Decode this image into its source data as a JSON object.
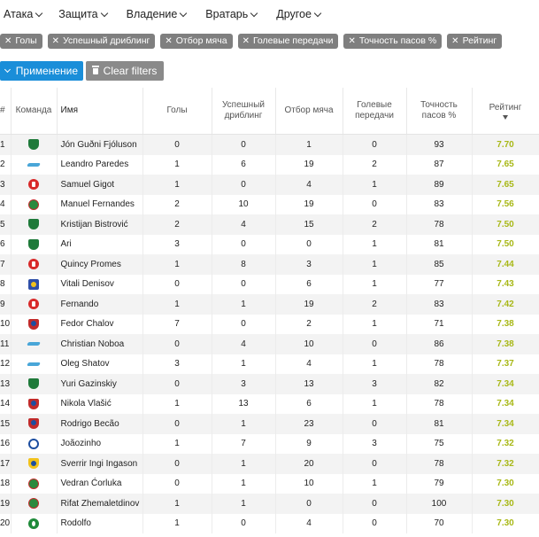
{
  "menu": {
    "items": [
      {
        "label": "Атака"
      },
      {
        "label": "Защита"
      },
      {
        "label": "Владение"
      },
      {
        "label": "Вратарь"
      },
      {
        "label": "Другое"
      }
    ]
  },
  "filters": [
    {
      "label": "Голы"
    },
    {
      "label": "Успешный дриблинг"
    },
    {
      "label": "Отбор мяча"
    },
    {
      "label": "Голевые передачи"
    },
    {
      "label": "Точность пасов %"
    },
    {
      "label": "Рейтинг"
    }
  ],
  "actions": {
    "apply_label": "Применение",
    "clear_label": "Clear filters"
  },
  "table": {
    "headers": {
      "num": "#",
      "team": "Команда",
      "name": "Имя",
      "goals": "Голы",
      "dribbling": "Успешный дриблинг",
      "tackles": "Отбор мяча",
      "assists": "Голевые передачи",
      "pass_accuracy": "Точность пасов %",
      "rating": "Рейтинг"
    },
    "rows": [
      {
        "num": "1",
        "team": "krasnodar",
        "name": "Jón Guðni Fjóluson",
        "goals": "0",
        "dribbling": "0",
        "tackles": "1",
        "assists": "0",
        "pass": "93",
        "rating": "7.70"
      },
      {
        "num": "2",
        "team": "zenit",
        "name": "Leandro Paredes",
        "goals": "1",
        "dribbling": "6",
        "tackles": "19",
        "assists": "2",
        "pass": "87",
        "rating": "7.65"
      },
      {
        "num": "3",
        "team": "spartak",
        "name": "Samuel Gigot",
        "goals": "1",
        "dribbling": "0",
        "tackles": "4",
        "assists": "1",
        "pass": "89",
        "rating": "7.65"
      },
      {
        "num": "4",
        "team": "lokomotiv",
        "name": "Manuel Fernandes",
        "goals": "2",
        "dribbling": "10",
        "tackles": "19",
        "assists": "0",
        "pass": "83",
        "rating": "7.56"
      },
      {
        "num": "5",
        "team": "krasnodar",
        "name": "Kristijan Bistrović",
        "goals": "2",
        "dribbling": "4",
        "tackles": "15",
        "assists": "2",
        "pass": "78",
        "rating": "7.50"
      },
      {
        "num": "6",
        "team": "krasnodar",
        "name": "Ari",
        "goals": "3",
        "dribbling": "0",
        "tackles": "0",
        "assists": "1",
        "pass": "81",
        "rating": "7.50"
      },
      {
        "num": "7",
        "team": "spartak",
        "name": "Quincy Promes",
        "goals": "1",
        "dribbling": "8",
        "tackles": "3",
        "assists": "1",
        "pass": "85",
        "rating": "7.44"
      },
      {
        "num": "8",
        "team": "krylia",
        "name": "Vitali Denisov",
        "goals": "0",
        "dribbling": "0",
        "tackles": "6",
        "assists": "1",
        "pass": "77",
        "rating": "7.43"
      },
      {
        "num": "9",
        "team": "spartak",
        "name": "Fernando",
        "goals": "1",
        "dribbling": "1",
        "tackles": "19",
        "assists": "2",
        "pass": "83",
        "rating": "7.42"
      },
      {
        "num": "10",
        "team": "cska",
        "name": "Fedor Chalov",
        "goals": "7",
        "dribbling": "0",
        "tackles": "2",
        "assists": "1",
        "pass": "71",
        "rating": "7.38"
      },
      {
        "num": "11",
        "team": "zenit",
        "name": "Christian Noboa",
        "goals": "0",
        "dribbling": "4",
        "tackles": "10",
        "assists": "0",
        "pass": "86",
        "rating": "7.38"
      },
      {
        "num": "12",
        "team": "zenit",
        "name": "Oleg Shatov",
        "goals": "3",
        "dribbling": "1",
        "tackles": "4",
        "assists": "1",
        "pass": "78",
        "rating": "7.37"
      },
      {
        "num": "13",
        "team": "krasnodar",
        "name": "Yuri Gazinskiy",
        "goals": "0",
        "dribbling": "3",
        "tackles": "13",
        "assists": "3",
        "pass": "82",
        "rating": "7.34"
      },
      {
        "num": "14",
        "team": "cska",
        "name": "Nikola Vlašić",
        "goals": "1",
        "dribbling": "13",
        "tackles": "6",
        "assists": "1",
        "pass": "78",
        "rating": "7.34"
      },
      {
        "num": "15",
        "team": "cska",
        "name": "Rodrigo Becão",
        "goals": "0",
        "dribbling": "1",
        "tackles": "23",
        "assists": "0",
        "pass": "81",
        "rating": "7.34"
      },
      {
        "num": "16",
        "team": "dynamo",
        "name": "Joãozinho",
        "goals": "1",
        "dribbling": "7",
        "tackles": "9",
        "assists": "3",
        "pass": "75",
        "rating": "7.32"
      },
      {
        "num": "17",
        "team": "rostov",
        "name": "Sverrir Ingi Ingason",
        "goals": "0",
        "dribbling": "1",
        "tackles": "20",
        "assists": "0",
        "pass": "78",
        "rating": "7.32"
      },
      {
        "num": "18",
        "team": "lokomotiv",
        "name": "Vedran Ćorluka",
        "goals": "0",
        "dribbling": "1",
        "tackles": "10",
        "assists": "1",
        "pass": "79",
        "rating": "7.30"
      },
      {
        "num": "19",
        "team": "lokomotiv",
        "name": "Rifat Zhemaletdinov",
        "goals": "1",
        "dribbling": "1",
        "tackles": "0",
        "assists": "0",
        "pass": "100",
        "rating": "7.30"
      },
      {
        "num": "20",
        "team": "akhmat",
        "name": "Rodolfo",
        "goals": "1",
        "dribbling": "0",
        "tackles": "4",
        "assists": "0",
        "pass": "70",
        "rating": "7.30"
      }
    ]
  }
}
